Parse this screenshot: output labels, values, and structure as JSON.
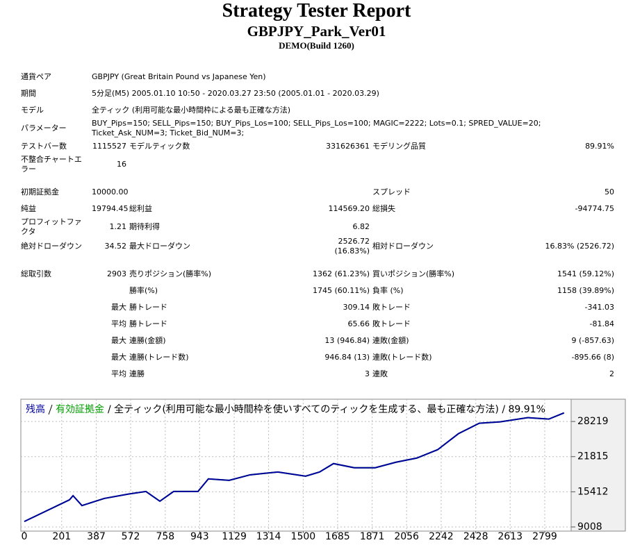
{
  "header": {
    "title": "Strategy Tester Report",
    "subtitle": "GBPJPY_Park_Ver01",
    "build": "DEMO(Build 1260)"
  },
  "table": {
    "sections": [
      [
        [
          "通貨ペア",
          "GBPJPY (Great Britain Pound vs Japanese Yen)"
        ],
        [
          "期間",
          "5分足(M5) 2005.01.10 10:50 - 2020.03.27 23:50 (2005.01.01 - 2020.03.29)"
        ],
        [
          "モデル",
          "全ティック (利用可能な最小時間枠による最も正確な方法)"
        ],
        [
          "パラメーター",
          "BUY_Pips=150; SELL_Pips=150; BUY_Pips_Los=100; SELL_Pips_Los=100; MAGIC=2222; Lots=0.1; SPRED_VALUE=20; Ticket_Ask_NUM=3; Ticket_Bid_NUM=3;"
        ],
        [
          "テストバー数",
          "1115527",
          "モデルティック数",
          "331626361",
          "モデリング品質",
          "89.91%"
        ],
        [
          "不整合チャートエラー",
          "16",
          null,
          null,
          null,
          null
        ]
      ],
      [
        [
          "初期証拠金",
          "10000.00",
          null,
          null,
          "スプレッド",
          "50"
        ],
        [
          "純益",
          "19794.45",
          "総利益",
          "114569.20",
          "総損失",
          "-94774.75"
        ],
        [
          "プロフィットファクタ",
          "1.21",
          "期待利得",
          "6.82",
          null,
          null
        ],
        [
          "絶対ドローダウン",
          "34.52",
          "最大ドローダウン",
          "2526.72 (16.83%)",
          "相対ドローダウン",
          "16.83% (2526.72)"
        ]
      ],
      [
        [
          "総取引数",
          "2903",
          "売りポジション(勝率%)",
          "1362 (61.23%)",
          "買いポジション(勝率%)",
          "1541 (59.12%)"
        ],
        [
          null,
          null,
          "勝率(%)",
          "1745 (60.11%)",
          "負率 (%)",
          "1158 (39.89%)"
        ],
        [
          null,
          "最大",
          "勝トレード",
          "309.14",
          "敗トレード",
          "-341.03"
        ],
        [
          null,
          "平均",
          "勝トレード",
          "65.66",
          "敗トレード",
          "-81.84"
        ],
        [
          null,
          "最大",
          "連勝(金額)",
          "13 (946.84)",
          "連敗(金額)",
          "9 (-857.63)"
        ],
        [
          null,
          "最大",
          "連勝(トレード数)",
          "946.84 (13)",
          "連敗(トレード数)",
          "-895.66 (8)"
        ],
        [
          null,
          "平均",
          "連勝",
          "3",
          "連敗",
          "2"
        ]
      ]
    ]
  },
  "chart_data": {
    "type": "line",
    "caption": "/ 全ティック(利用可能な最小時間枠を使いすべてのティックを生成する、最も正確な方法) / 89.91%",
    "x": [
      0,
      243,
      262,
      310,
      430,
      560,
      654,
      729,
      803,
      934,
      990,
      1102,
      1214,
      1364,
      1513,
      1588,
      1663,
      1775,
      1887,
      1999,
      2111,
      2223,
      2335,
      2447,
      2559,
      2709,
      2821,
      2903
    ],
    "series": [
      {
        "name": "有効証拠金",
        "color": "#00a000",
        "values": [
          10000,
          13950,
          14700,
          12900,
          14200,
          15000,
          15470,
          13700,
          15470,
          15470,
          17760,
          17500,
          18500,
          19020,
          18260,
          19020,
          20550,
          19790,
          19790,
          20800,
          21560,
          23080,
          26000,
          27900,
          28150,
          28920,
          28660,
          29794
        ]
      },
      {
        "name": "残高",
        "color": "#0000a0",
        "values": [
          10000,
          13950,
          14700,
          12900,
          14200,
          15000,
          15470,
          13700,
          15470,
          15470,
          17760,
          17500,
          18500,
          19020,
          18260,
          19020,
          20550,
          19790,
          19790,
          20800,
          21560,
          23080,
          26000,
          27900,
          28150,
          28920,
          28660,
          29794
        ]
      }
    ],
    "xlim": [
      0,
      2930
    ],
    "xticks": [
      0,
      201,
      387,
      572,
      758,
      943,
      1129,
      1314,
      1500,
      1685,
      1871,
      2056,
      2242,
      2428,
      2613,
      2799
    ],
    "ylim": [
      8628,
      31900
    ],
    "yticks": [
      9008,
      15412,
      21815,
      28219
    ],
    "grid": true
  }
}
